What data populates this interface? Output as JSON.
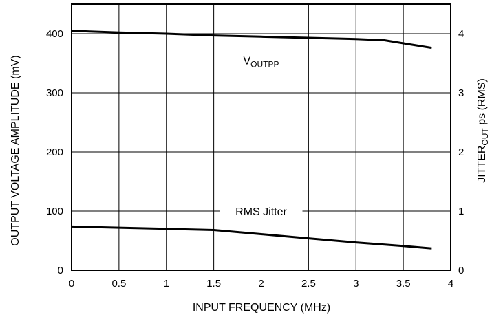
{
  "chart_data": {
    "type": "line",
    "xlabel": "INPUT FREQUENCY (MHz)",
    "ylabel_left": "OUTPUT VOLTAGE AMPLITUDE (mV)",
    "ylabel_right": {
      "main": "JITTER",
      "sub": "OUT",
      "tail": " ps (RMS)"
    },
    "xlim": [
      0,
      4
    ],
    "ylim_left": [
      0,
      450
    ],
    "ylim_right": [
      0,
      4.5
    ],
    "x_ticks": [
      "0",
      "0.5",
      "1",
      "1.5",
      "2",
      "2.5",
      "3",
      "3.5",
      "4"
    ],
    "y_left_ticks": [
      "0",
      "100",
      "200",
      "300",
      "400"
    ],
    "y_right_ticks": [
      "0",
      "1",
      "2",
      "3",
      "4"
    ],
    "grid": true,
    "series": [
      {
        "label": {
          "main": "V",
          "sub": "OUTPP"
        },
        "axis": "left",
        "x": [
          0,
          0.5,
          1,
          1.5,
          2,
          2.5,
          3,
          3.3,
          3.8
        ],
        "y": [
          405,
          402,
          400,
          397,
          395,
          393,
          391,
          389,
          376
        ]
      },
      {
        "label": {
          "main": "RMS Jitter",
          "sub": ""
        },
        "axis": "right",
        "x": [
          0,
          0.5,
          1,
          1.5,
          2,
          2.5,
          3,
          3.5,
          3.8
        ],
        "y": [
          0.74,
          0.72,
          0.7,
          0.68,
          0.61,
          0.54,
          0.47,
          0.41,
          0.37
        ]
      }
    ]
  }
}
